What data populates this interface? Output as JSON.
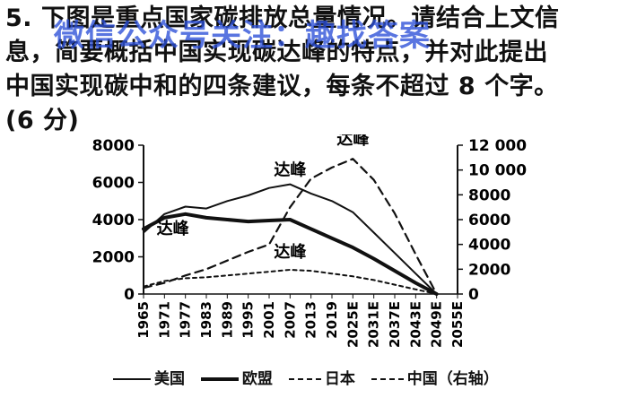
{
  "question": {
    "lines": [
      "5. 下图是重点国家碳排放总量情况。请结合上文信",
      "息，简要概括中国实现碳达峰的特点，并对此提出",
      "中国实现碳中和的四条建议，每条不超过 8 个字。",
      "(6 分)"
    ]
  },
  "watermark": "微信公众号关注：趣找答案",
  "chart_data": {
    "type": "line",
    "x": [
      "1965",
      "1971",
      "1977",
      "1983",
      "1989",
      "1995",
      "2001",
      "2007",
      "2013",
      "2019",
      "2025E",
      "2031E",
      "2037E",
      "2043E",
      "2049E",
      "2055E"
    ],
    "yleft_ticks": [
      "8000",
      "6000",
      "4000",
      "2000",
      "0"
    ],
    "yright_ticks": [
      "12 000",
      "10 000",
      "8000",
      "6000",
      "4000",
      "2000",
      "0"
    ],
    "ylim_left": [
      0,
      8000
    ],
    "ylim_right": [
      0,
      12000
    ],
    "series": [
      {
        "name": "美国",
        "axis": "left",
        "style": "solid-thin",
        "values": [
          3300,
          4300,
          4700,
          4600,
          5000,
          5300,
          5700,
          5900,
          5400,
          5000,
          4400,
          3300,
          2200,
          1100,
          0,
          null
        ]
      },
      {
        "name": "欧盟",
        "axis": "left",
        "style": "solid-thick",
        "values": [
          3500,
          4100,
          4300,
          4100,
          4000,
          3900,
          3950,
          4000,
          3500,
          3000,
          2500,
          1900,
          1250,
          600,
          0,
          null
        ]
      },
      {
        "name": "日本",
        "axis": "left",
        "style": "dotted",
        "values": [
          400,
          700,
          850,
          900,
          1000,
          1100,
          1200,
          1300,
          1250,
          1100,
          950,
          750,
          500,
          250,
          0,
          null
        ]
      },
      {
        "name": "中国（右轴）",
        "axis": "right",
        "style": "dashed",
        "values": [
          500,
          900,
          1500,
          2000,
          2700,
          3400,
          4000,
          7000,
          9300,
          10200,
          10900,
          9200,
          6500,
          3200,
          0,
          null
        ]
      }
    ],
    "annotations": [
      "达峰",
      "达峰",
      "达峰",
      "达峰"
    ]
  },
  "legend": [
    {
      "label": "美国"
    },
    {
      "label": "欧盟"
    },
    {
      "label": "日本"
    },
    {
      "label": "中国（右轴）"
    }
  ]
}
